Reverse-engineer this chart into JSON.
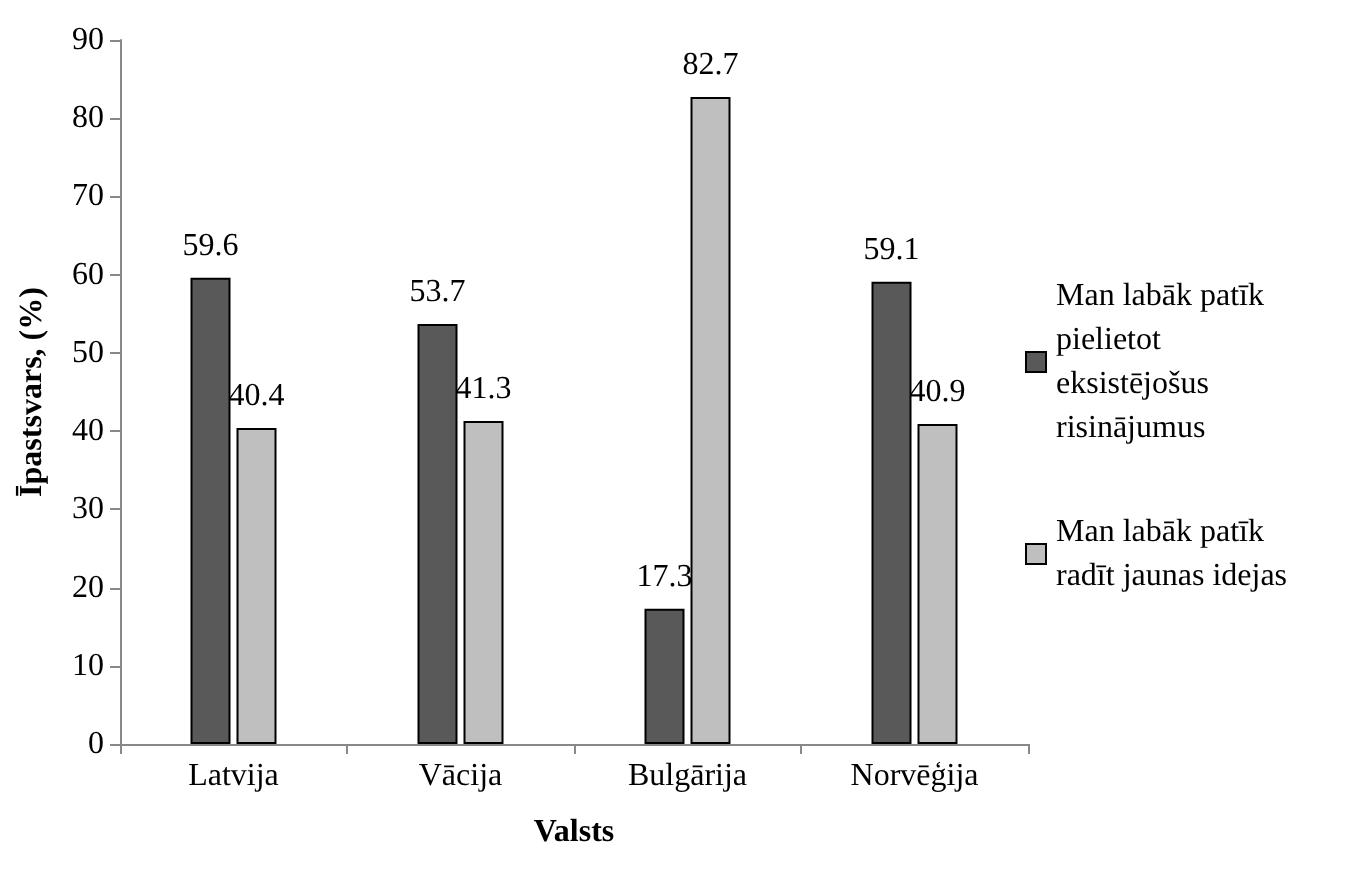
{
  "chart_data": {
    "type": "bar",
    "xlabel": "Valsts",
    "ylabel": "Īpastsvars, (%)",
    "categories": [
      "Latvija",
      "Vācija",
      "Bulgārija",
      "Norvēģija"
    ],
    "series": [
      {
        "name": "Man labāk patīk pielietot eksistējošus risinājumus",
        "color": "#595959",
        "values": [
          59.6,
          53.7,
          17.3,
          59.1
        ]
      },
      {
        "name": "Man labāk patīk radīt jaunas idejas",
        "color": "#bfbfbf",
        "values": [
          40.4,
          41.3,
          82.7,
          40.9
        ]
      }
    ],
    "ylim": [
      0,
      90
    ],
    "yticks": [
      0,
      10,
      20,
      30,
      40,
      50,
      60,
      70,
      80,
      90
    ],
    "grid": false,
    "legend": "right",
    "data_labels": true
  }
}
